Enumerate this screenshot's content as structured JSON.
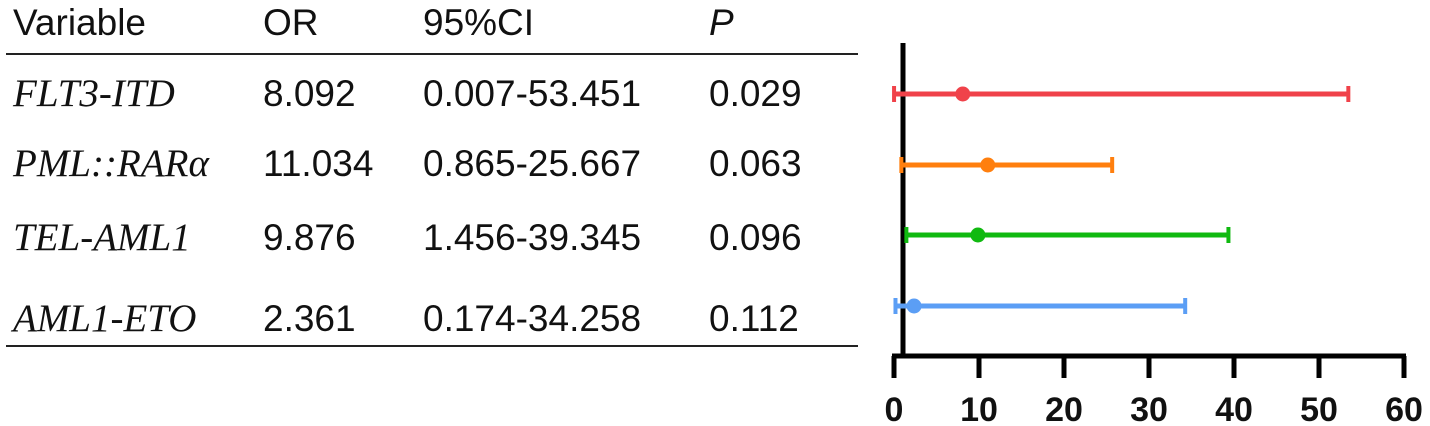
{
  "table": {
    "headers": {
      "variable": "Variable",
      "or": "OR",
      "ci": "95%CI",
      "p": "P"
    },
    "rows": [
      {
        "variable": "FLT3-ITD",
        "or": "8.092",
        "ci": "0.007-53.451",
        "p": "0.029"
      },
      {
        "variable": "PML::RARα",
        "or": "11.034",
        "ci": "0.865-25.667",
        "p": "0.063"
      },
      {
        "variable": "TEL-AML1",
        "or": "9.876",
        "ci": "1.456-39.345",
        "p": "0.096"
      },
      {
        "variable": "AML1-ETO",
        "or": "2.361",
        "ci": "0.174-34.258",
        "p": "0.112"
      }
    ]
  },
  "chart_data": {
    "type": "forest",
    "title": "",
    "xlabel": "",
    "ylabel": "",
    "xlim": [
      0,
      60
    ],
    "xticks": [
      0,
      10,
      20,
      30,
      40,
      50,
      60
    ],
    "grid": false,
    "legend": "none",
    "categories": [
      "FLT3-ITD",
      "PML::RARα",
      "TEL-AML1",
      "AML1-ETO"
    ],
    "series": [
      {
        "name": "FLT3-ITD",
        "or": 8.092,
        "ci_low": 0.007,
        "ci_high": 53.451,
        "p": 0.029,
        "color": "#f0424a"
      },
      {
        "name": "PML::RARα",
        "or": 11.034,
        "ci_low": 0.865,
        "ci_high": 25.667,
        "p": 0.063,
        "color": "#ff7f0e"
      },
      {
        "name": "TEL-AML1",
        "or": 9.876,
        "ci_low": 1.456,
        "ci_high": 39.345,
        "p": 0.096,
        "color": "#10b910"
      },
      {
        "name": "AML1-ETO",
        "or": 2.361,
        "ci_low": 0.174,
        "ci_high": 34.258,
        "p": 0.112,
        "color": "#5b9ef5"
      }
    ]
  }
}
